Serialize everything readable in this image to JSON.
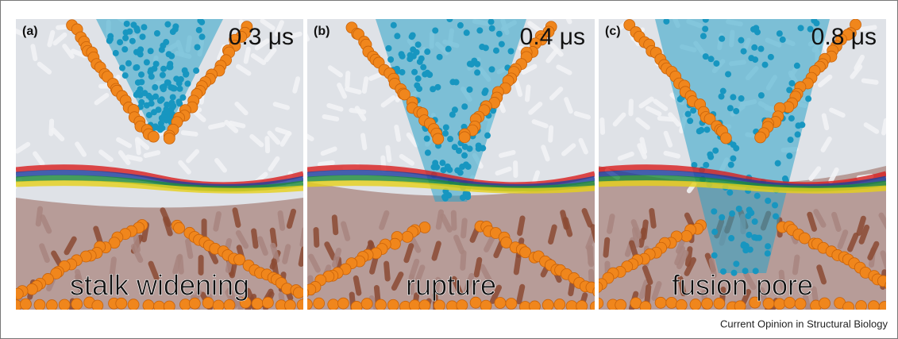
{
  "panels": [
    {
      "label": "(a)",
      "time": "0.3 μs",
      "caption": "stalk widening"
    },
    {
      "label": "(b)",
      "time": "0.4 μs",
      "caption": "rupture"
    },
    {
      "label": "(c)",
      "time": "0.8 μs",
      "caption": "fusion pore"
    }
  ],
  "footer": "Current Opinion in Structural Biology"
}
